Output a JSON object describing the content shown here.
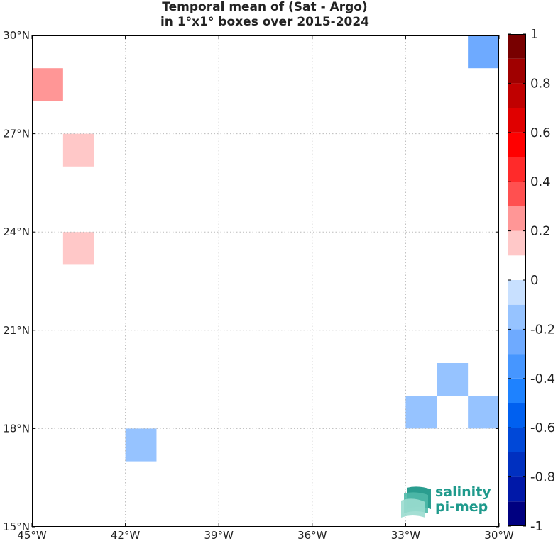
{
  "title_line1": "Temporal mean of (Sat - Argo)",
  "title_line2": "in 1°x1° boxes over 2015-2024",
  "logo": {
    "line1": "salinity",
    "line2": "pi-mep"
  },
  "colors": {
    "levels": [
      "#000080",
      "#0018a8",
      "#0030c0",
      "#0048d8",
      "#0060f0",
      "#1e82ff",
      "#4696ff",
      "#6eaaff",
      "#96c3ff",
      "#c8e0ff",
      "#ffffff",
      "#ffc8c8",
      "#ff9696",
      "#ff5050",
      "#ff2a2a",
      "#ff0000",
      "#e00000",
      "#c00000",
      "#a00000",
      "#780000"
    ]
  },
  "chart_data": {
    "type": "heatmap",
    "title": "Temporal mean of (Sat - Argo) in 1°x1° boxes over 2015-2024",
    "xlim": [
      -45,
      -30
    ],
    "ylim": [
      15,
      30
    ],
    "x_ticks": [
      {
        "value": -45,
        "label": "45°W"
      },
      {
        "value": -42,
        "label": "42°W"
      },
      {
        "value": -39,
        "label": "39°W"
      },
      {
        "value": -36,
        "label": "36°W"
      },
      {
        "value": -33,
        "label": "33°W"
      },
      {
        "value": -30,
        "label": "30°W"
      }
    ],
    "y_ticks": [
      {
        "value": 15,
        "label": "15°N"
      },
      {
        "value": 18,
        "label": "18°N"
      },
      {
        "value": 21,
        "label": "21°N"
      },
      {
        "value": 24,
        "label": "24°N"
      },
      {
        "value": 27,
        "label": "27°N"
      },
      {
        "value": 30,
        "label": "30°N"
      }
    ],
    "grid": true,
    "colorbar": {
      "range": [
        -1,
        1
      ],
      "step": 0.1,
      "ticks": [
        {
          "value": 1,
          "label": "1"
        },
        {
          "value": 0.8,
          "label": "0.8"
        },
        {
          "value": 0.6,
          "label": "0.6"
        },
        {
          "value": 0.4,
          "label": "0.4"
        },
        {
          "value": 0.2,
          "label": "0.2"
        },
        {
          "value": 0,
          "label": "0"
        },
        {
          "value": -0.2,
          "label": "-0.2"
        },
        {
          "value": -0.4,
          "label": "-0.4"
        },
        {
          "value": -0.6,
          "label": "-0.6"
        },
        {
          "value": -0.8,
          "label": "-0.8"
        },
        {
          "value": -1,
          "label": "-1"
        }
      ]
    },
    "cells": [
      {
        "lon": -45,
        "lat": 28,
        "value": 0.25
      },
      {
        "lon": -44,
        "lat": 26,
        "value": 0.15
      },
      {
        "lon": -44,
        "lat": 23,
        "value": 0.15
      },
      {
        "lon": -31,
        "lat": 29,
        "value": -0.25
      },
      {
        "lon": -42,
        "lat": 17,
        "value": -0.15
      },
      {
        "lon": -33,
        "lat": 18,
        "value": -0.15
      },
      {
        "lon": -32,
        "lat": 19,
        "value": -0.15
      },
      {
        "lon": -31,
        "lat": 18,
        "value": -0.15
      }
    ]
  }
}
